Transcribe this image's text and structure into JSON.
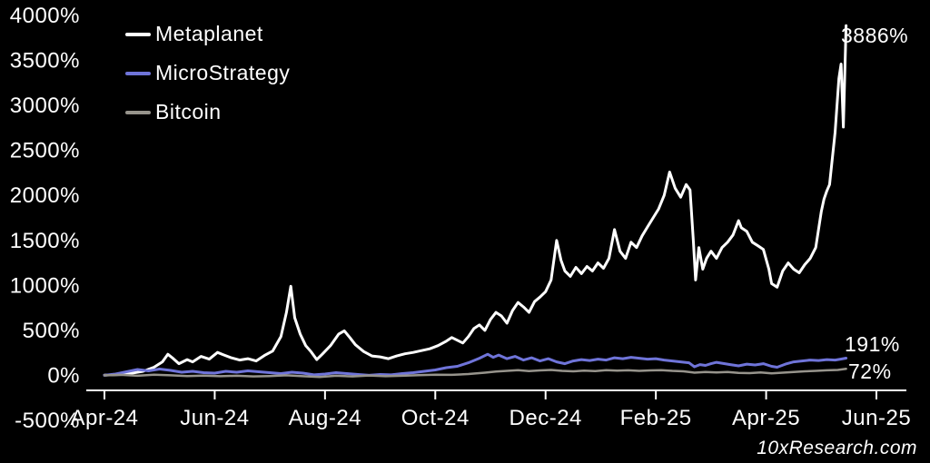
{
  "legend": [
    {
      "label": "Metaplanet",
      "color": "#ffffff"
    },
    {
      "label": "MicroStrategy",
      "color": "#6f74d9"
    },
    {
      "label": "Bitcoin",
      "color": "#97948c"
    }
  ],
  "annotations": {
    "metaplanet_end": "3886%",
    "microstrategy_end": "191%",
    "bitcoin_end": "72%"
  },
  "watermark": "10xResearch.com",
  "colors": {
    "background": "#000000",
    "axis": "#ffffff",
    "text": "#ffffff"
  },
  "chart_data": {
    "type": "line",
    "title": "",
    "xlabel": "",
    "ylabel": "",
    "x_unit": "months since Apr-24",
    "ylim": [
      -500,
      4000
    ],
    "grid": false,
    "legend_position": "top-left",
    "yticks": [
      4000,
      3500,
      3000,
      2500,
      2000,
      1500,
      1000,
      500,
      0,
      -500
    ],
    "xticks": [
      {
        "t": 0,
        "label": "Apr-24"
      },
      {
        "t": 2,
        "label": "Jun-24"
      },
      {
        "t": 4,
        "label": "Aug-24"
      },
      {
        "t": 6,
        "label": "Oct-24"
      },
      {
        "t": 8,
        "label": "Dec-24"
      },
      {
        "t": 10,
        "label": "Feb-25"
      },
      {
        "t": 12,
        "label": "Apr-25"
      },
      {
        "t": 14,
        "label": "Jun-25"
      }
    ],
    "series": [
      {
        "name": "Metaplanet",
        "color": "#ffffff",
        "width": 3,
        "points": [
          [
            0,
            2
          ],
          [
            0.15,
            5
          ],
          [
            0.3,
            10
          ],
          [
            0.5,
            25
          ],
          [
            0.7,
            45
          ],
          [
            0.9,
            90
          ],
          [
            1.05,
            150
          ],
          [
            1.15,
            235
          ],
          [
            1.25,
            185
          ],
          [
            1.35,
            130
          ],
          [
            1.5,
            175
          ],
          [
            1.6,
            150
          ],
          [
            1.75,
            210
          ],
          [
            1.9,
            180
          ],
          [
            2.05,
            255
          ],
          [
            2.15,
            230
          ],
          [
            2.3,
            195
          ],
          [
            2.45,
            170
          ],
          [
            2.6,
            185
          ],
          [
            2.75,
            160
          ],
          [
            2.9,
            220
          ],
          [
            3.05,
            270
          ],
          [
            3.2,
            430
          ],
          [
            3.3,
            700
          ],
          [
            3.38,
            990
          ],
          [
            3.45,
            640
          ],
          [
            3.55,
            460
          ],
          [
            3.65,
            330
          ],
          [
            3.75,
            260
          ],
          [
            3.85,
            175
          ],
          [
            3.95,
            235
          ],
          [
            4.1,
            330
          ],
          [
            4.25,
            460
          ],
          [
            4.35,
            495
          ],
          [
            4.45,
            420
          ],
          [
            4.55,
            340
          ],
          [
            4.7,
            265
          ],
          [
            4.85,
            215
          ],
          [
            5.0,
            205
          ],
          [
            5.15,
            185
          ],
          [
            5.3,
            215
          ],
          [
            5.45,
            240
          ],
          [
            5.6,
            255
          ],
          [
            5.75,
            275
          ],
          [
            5.9,
            295
          ],
          [
            6.05,
            330
          ],
          [
            6.2,
            380
          ],
          [
            6.3,
            420
          ],
          [
            6.4,
            390
          ],
          [
            6.5,
            360
          ],
          [
            6.6,
            430
          ],
          [
            6.7,
            520
          ],
          [
            6.8,
            560
          ],
          [
            6.9,
            500
          ],
          [
            7.0,
            620
          ],
          [
            7.1,
            700
          ],
          [
            7.2,
            660
          ],
          [
            7.3,
            580
          ],
          [
            7.4,
            720
          ],
          [
            7.5,
            810
          ],
          [
            7.6,
            760
          ],
          [
            7.7,
            700
          ],
          [
            7.8,
            820
          ],
          [
            7.9,
            870
          ],
          [
            8.0,
            930
          ],
          [
            8.1,
            1060
          ],
          [
            8.2,
            1500
          ],
          [
            8.28,
            1280
          ],
          [
            8.35,
            1160
          ],
          [
            8.45,
            1100
          ],
          [
            8.55,
            1200
          ],
          [
            8.65,
            1130
          ],
          [
            8.75,
            1210
          ],
          [
            8.85,
            1160
          ],
          [
            8.95,
            1250
          ],
          [
            9.05,
            1190
          ],
          [
            9.15,
            1300
          ],
          [
            9.25,
            1620
          ],
          [
            9.35,
            1380
          ],
          [
            9.45,
            1300
          ],
          [
            9.55,
            1480
          ],
          [
            9.65,
            1420
          ],
          [
            9.75,
            1550
          ],
          [
            9.85,
            1650
          ],
          [
            9.95,
            1750
          ],
          [
            10.05,
            1850
          ],
          [
            10.15,
            2000
          ],
          [
            10.25,
            2260
          ],
          [
            10.35,
            2080
          ],
          [
            10.45,
            1980
          ],
          [
            10.55,
            2120
          ],
          [
            10.62,
            2060
          ],
          [
            10.68,
            1500
          ],
          [
            10.72,
            1060
          ],
          [
            10.78,
            1420
          ],
          [
            10.85,
            1180
          ],
          [
            10.92,
            1300
          ],
          [
            11.0,
            1380
          ],
          [
            11.1,
            1300
          ],
          [
            11.2,
            1420
          ],
          [
            11.3,
            1480
          ],
          [
            11.4,
            1560
          ],
          [
            11.5,
            1720
          ],
          [
            11.55,
            1640
          ],
          [
            11.65,
            1600
          ],
          [
            11.75,
            1480
          ],
          [
            11.85,
            1440
          ],
          [
            11.95,
            1400
          ],
          [
            12.05,
            1180
          ],
          [
            12.1,
            1020
          ],
          [
            12.2,
            980
          ],
          [
            12.3,
            1160
          ],
          [
            12.4,
            1250
          ],
          [
            12.5,
            1180
          ],
          [
            12.6,
            1140
          ],
          [
            12.7,
            1230
          ],
          [
            12.8,
            1300
          ],
          [
            12.9,
            1420
          ],
          [
            13.0,
            1820
          ],
          [
            13.05,
            1960
          ],
          [
            13.1,
            2050
          ],
          [
            13.15,
            2120
          ],
          [
            13.25,
            2700
          ],
          [
            13.32,
            3300
          ],
          [
            13.36,
            3460
          ],
          [
            13.4,
            2760
          ],
          [
            13.45,
            3886
          ]
        ]
      },
      {
        "name": "MicroStrategy",
        "color": "#6f74d9",
        "width": 3,
        "points": [
          [
            0,
            0
          ],
          [
            0.2,
            15
          ],
          [
            0.4,
            40
          ],
          [
            0.6,
            65
          ],
          [
            0.8,
            50
          ],
          [
            1.0,
            70
          ],
          [
            1.2,
            55
          ],
          [
            1.4,
            35
          ],
          [
            1.6,
            45
          ],
          [
            1.8,
            30
          ],
          [
            2.0,
            25
          ],
          [
            2.2,
            45
          ],
          [
            2.4,
            35
          ],
          [
            2.6,
            50
          ],
          [
            2.8,
            40
          ],
          [
            3.0,
            30
          ],
          [
            3.2,
            20
          ],
          [
            3.4,
            35
          ],
          [
            3.6,
            25
          ],
          [
            3.8,
            5
          ],
          [
            4.0,
            15
          ],
          [
            4.2,
            30
          ],
          [
            4.4,
            20
          ],
          [
            4.6,
            10
          ],
          [
            4.8,
            0
          ],
          [
            5.0,
            10
          ],
          [
            5.2,
            5
          ],
          [
            5.4,
            20
          ],
          [
            5.6,
            30
          ],
          [
            5.8,
            45
          ],
          [
            6.0,
            60
          ],
          [
            6.2,
            85
          ],
          [
            6.4,
            100
          ],
          [
            6.6,
            140
          ],
          [
            6.8,
            190
          ],
          [
            6.95,
            235
          ],
          [
            7.05,
            200
          ],
          [
            7.15,
            225
          ],
          [
            7.3,
            185
          ],
          [
            7.45,
            210
          ],
          [
            7.6,
            170
          ],
          [
            7.75,
            195
          ],
          [
            7.9,
            160
          ],
          [
            8.05,
            185
          ],
          [
            8.2,
            150
          ],
          [
            8.35,
            130
          ],
          [
            8.5,
            160
          ],
          [
            8.65,
            175
          ],
          [
            8.8,
            165
          ],
          [
            8.95,
            180
          ],
          [
            9.1,
            170
          ],
          [
            9.25,
            195
          ],
          [
            9.4,
            185
          ],
          [
            9.55,
            200
          ],
          [
            9.7,
            190
          ],
          [
            9.85,
            180
          ],
          [
            10.0,
            185
          ],
          [
            10.15,
            170
          ],
          [
            10.3,
            160
          ],
          [
            10.45,
            150
          ],
          [
            10.6,
            140
          ],
          [
            10.7,
            95
          ],
          [
            10.8,
            120
          ],
          [
            10.9,
            110
          ],
          [
            11.0,
            130
          ],
          [
            11.1,
            145
          ],
          [
            11.2,
            135
          ],
          [
            11.35,
            120
          ],
          [
            11.5,
            105
          ],
          [
            11.65,
            125
          ],
          [
            11.8,
            115
          ],
          [
            11.95,
            130
          ],
          [
            12.1,
            100
          ],
          [
            12.2,
            90
          ],
          [
            12.35,
            125
          ],
          [
            12.5,
            150
          ],
          [
            12.65,
            160
          ],
          [
            12.8,
            170
          ],
          [
            12.95,
            165
          ],
          [
            13.1,
            175
          ],
          [
            13.25,
            170
          ],
          [
            13.35,
            180
          ],
          [
            13.45,
            191
          ]
        ]
      },
      {
        "name": "Bitcoin",
        "color": "#97948c",
        "width": 2.5,
        "points": [
          [
            0,
            0
          ],
          [
            0.3,
            5
          ],
          [
            0.6,
            -5
          ],
          [
            0.9,
            8
          ],
          [
            1.2,
            0
          ],
          [
            1.5,
            -8
          ],
          [
            1.8,
            -3
          ],
          [
            2.1,
            -10
          ],
          [
            2.4,
            -5
          ],
          [
            2.7,
            -12
          ],
          [
            3.0,
            -8
          ],
          [
            3.3,
            0
          ],
          [
            3.6,
            -10
          ],
          [
            3.9,
            -18
          ],
          [
            4.2,
            -5
          ],
          [
            4.5,
            -12
          ],
          [
            4.8,
            -2
          ],
          [
            5.1,
            -10
          ],
          [
            5.4,
            -5
          ],
          [
            5.7,
            2
          ],
          [
            6.0,
            8
          ],
          [
            6.3,
            5
          ],
          [
            6.6,
            15
          ],
          [
            6.9,
            30
          ],
          [
            7.1,
            42
          ],
          [
            7.3,
            50
          ],
          [
            7.5,
            58
          ],
          [
            7.7,
            48
          ],
          [
            7.9,
            55
          ],
          [
            8.1,
            60
          ],
          [
            8.3,
            50
          ],
          [
            8.5,
            45
          ],
          [
            8.7,
            52
          ],
          [
            8.9,
            48
          ],
          [
            9.1,
            58
          ],
          [
            9.3,
            52
          ],
          [
            9.5,
            56
          ],
          [
            9.7,
            50
          ],
          [
            9.9,
            55
          ],
          [
            10.1,
            58
          ],
          [
            10.3,
            50
          ],
          [
            10.5,
            45
          ],
          [
            10.7,
            30
          ],
          [
            10.9,
            38
          ],
          [
            11.1,
            32
          ],
          [
            11.3,
            38
          ],
          [
            11.5,
            28
          ],
          [
            11.7,
            25
          ],
          [
            11.9,
            32
          ],
          [
            12.1,
            22
          ],
          [
            12.3,
            30
          ],
          [
            12.5,
            38
          ],
          [
            12.7,
            45
          ],
          [
            12.9,
            50
          ],
          [
            13.1,
            56
          ],
          [
            13.3,
            60
          ],
          [
            13.45,
            72
          ]
        ]
      }
    ]
  }
}
